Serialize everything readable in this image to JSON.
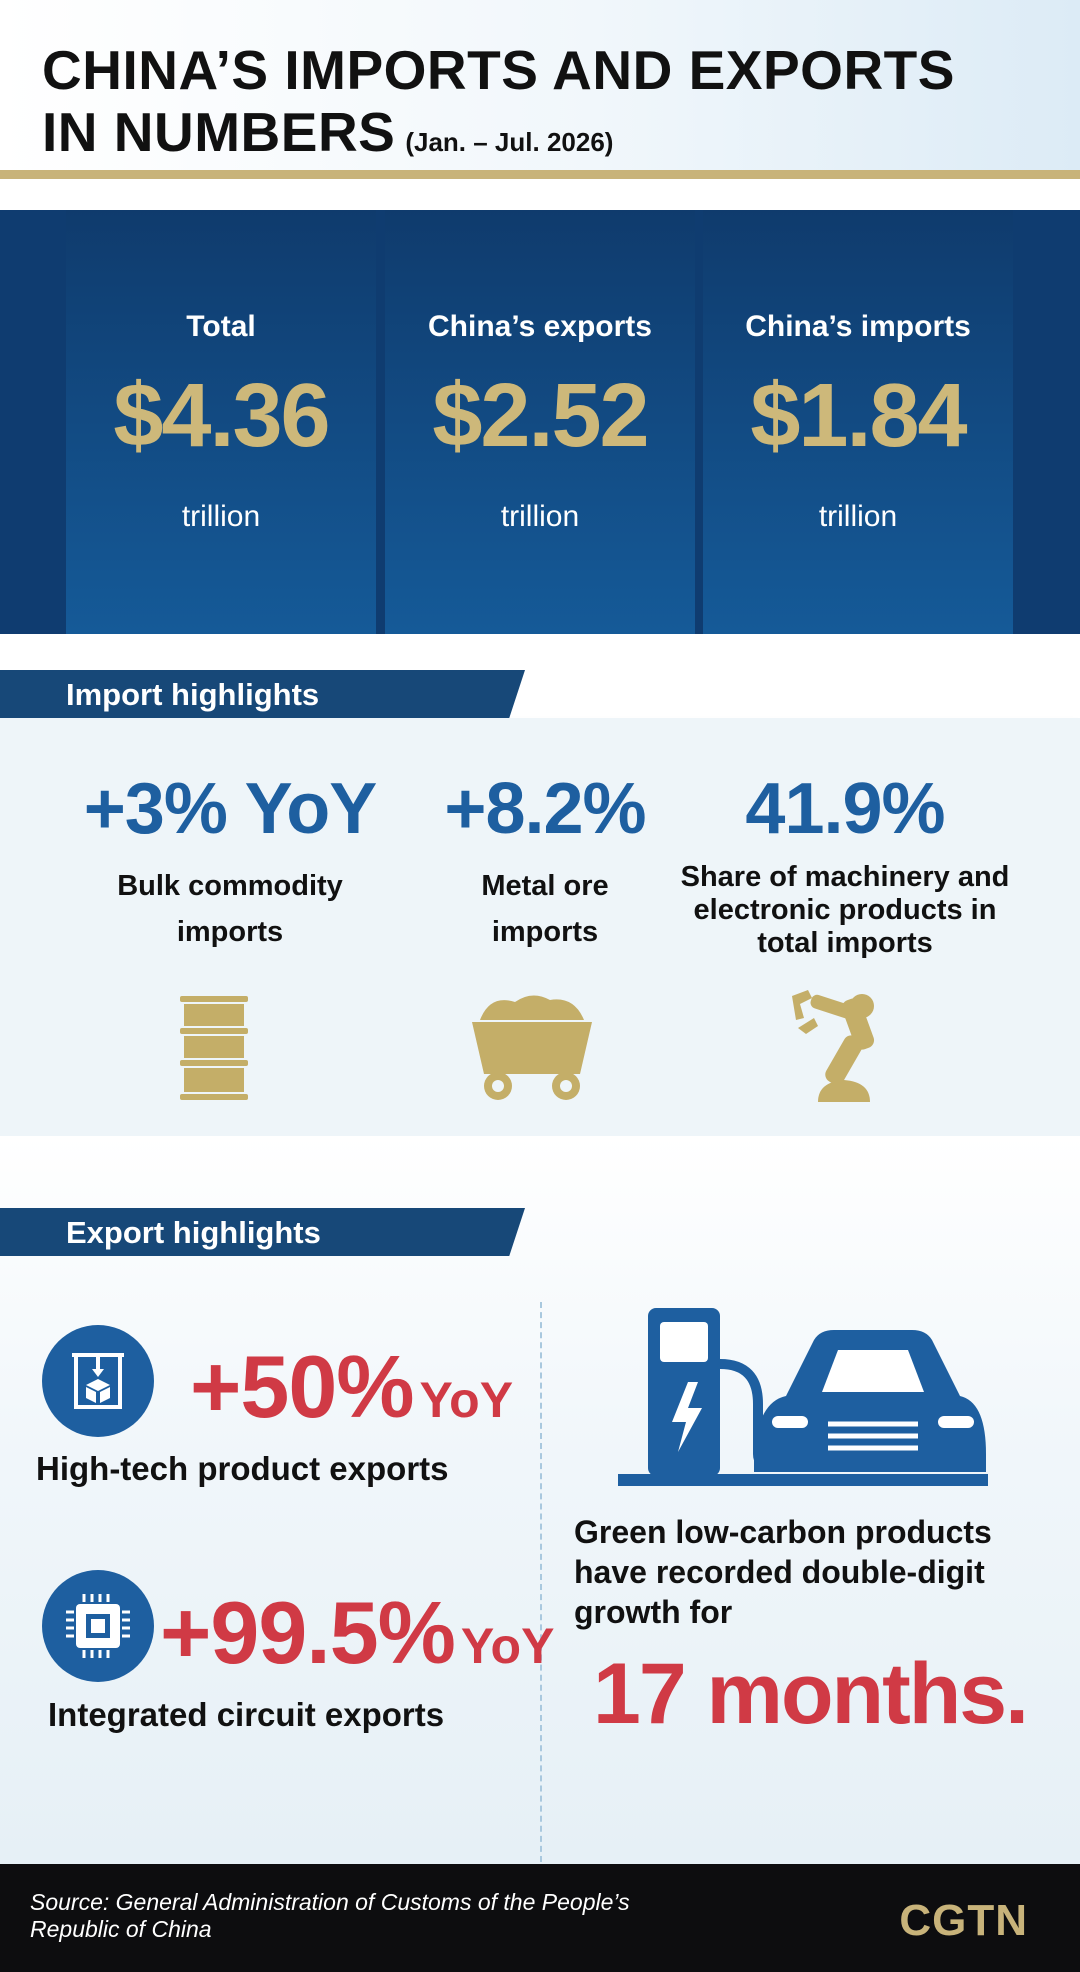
{
  "header": {
    "title_line1": "CHINA’S IMPORTS AND EXPORTS",
    "title_line2": "IN NUMBERS",
    "period": "(Jan. – Jul. 2026)"
  },
  "totals": [
    {
      "label": "Total",
      "value": "$4.36",
      "unit": "trillion"
    },
    {
      "label": "China’s exports",
      "value": "$2.52",
      "unit": "trillion"
    },
    {
      "label": "China’s imports",
      "value": "$1.84",
      "unit": "trillion"
    }
  ],
  "imports": {
    "section_title": "Import highlights",
    "items": [
      {
        "value": "+3% YoY",
        "desc": "Bulk commodity imports",
        "icon": "oil-barrel-icon"
      },
      {
        "value": "+8.2%",
        "desc": "Metal ore imports",
        "icon": "ore-cart-icon"
      },
      {
        "value": "41.9%",
        "desc": "Share of machinery and electronic products in total imports",
        "icon": "robotic-arm-icon"
      }
    ]
  },
  "exports": {
    "section_title": "Export highlights",
    "hightech": {
      "value": "+50%",
      "suffix": "YoY",
      "label": "High-tech product exports",
      "icon": "3d-printer-icon"
    },
    "ic": {
      "value": "+99.5%",
      "suffix": "YoY",
      "label": "Integrated circuit exports",
      "icon": "chip-icon"
    },
    "green": {
      "text": "Green low-carbon products have recorded double-digit growth for",
      "months": "17 months.",
      "icon": "ev-charging-car-icon"
    }
  },
  "footer": {
    "source": "Source: General Administration of Customs of the People’s Republic of China",
    "logo": "CGTN"
  },
  "colors": {
    "navy": "#0f3c70",
    "gold": "#c8b37a",
    "blue": "#1e5fa0",
    "red": "#d03a45"
  }
}
